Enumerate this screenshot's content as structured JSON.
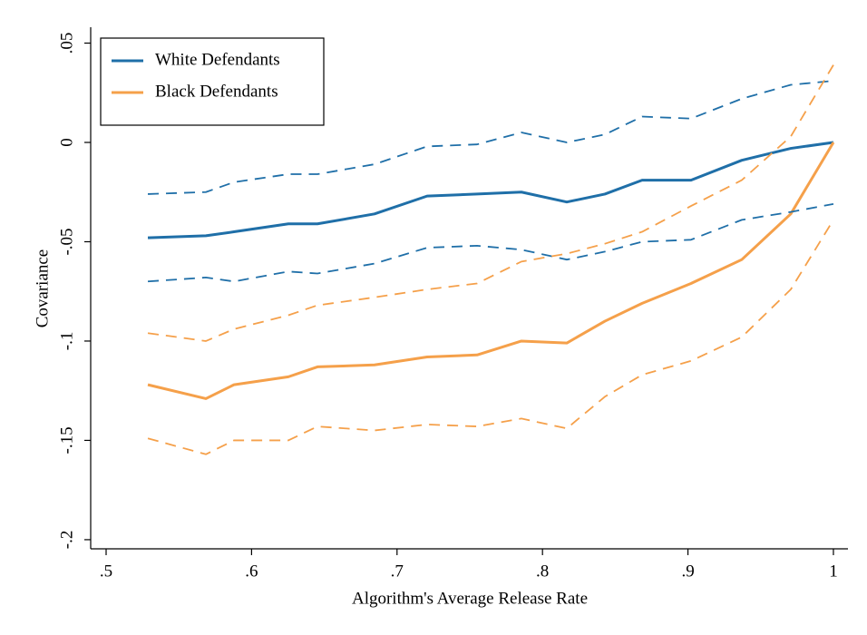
{
  "chart_data": {
    "type": "line",
    "x_label": "Algorithm's Average Release Rate",
    "y_label": "Covariance",
    "x": [
      0.5287,
      0.5686,
      0.5879,
      0.6253,
      0.6453,
      0.6845,
      0.7207,
      0.755,
      0.7855,
      0.8167,
      0.8429,
      0.8685,
      0.9021,
      0.937,
      0.9707,
      1.0
    ],
    "series": [
      {
        "name": "White Defendants",
        "color": "#1f6fa8",
        "dashed": false,
        "values": [
          -0.048,
          -0.047,
          -0.045,
          -0.041,
          -0.041,
          -0.036,
          -0.027,
          -0.026,
          -0.025,
          -0.03,
          -0.026,
          -0.019,
          -0.019,
          -0.009,
          -0.003,
          0
        ]
      },
      {
        "name": "Black Defendants",
        "color": "#f5a04a",
        "dashed": false,
        "values": [
          -0.122,
          -0.129,
          -0.122,
          -0.118,
          -0.113,
          -0.112,
          -0.108,
          -0.107,
          -0.1,
          -0.101,
          -0.09,
          -0.081,
          -0.071,
          -0.059,
          -0.036,
          0
        ]
      },
      {
        "color": "#1f6fa8",
        "dashed": true,
        "values": [
          -0.026,
          -0.025,
          -0.02,
          -0.016,
          -0.016,
          -0.011,
          -0.002,
          -0.001,
          0.005,
          0.0,
          0.004,
          0.013,
          0.012,
          0.022,
          0.029,
          0.031
        ]
      },
      {
        "color": "#1f6fa8",
        "dashed": true,
        "values": [
          -0.07,
          -0.068,
          -0.07,
          -0.065,
          -0.066,
          -0.061,
          -0.053,
          -0.052,
          -0.054,
          -0.059,
          -0.055,
          -0.05,
          -0.049,
          -0.039,
          -0.035,
          -0.031
        ]
      },
      {
        "color": "#f5a04a",
        "dashed": true,
        "values": [
          -0.096,
          -0.1,
          -0.094,
          -0.087,
          -0.082,
          -0.078,
          -0.074,
          -0.071,
          -0.06,
          -0.056,
          -0.051,
          -0.045,
          -0.032,
          -0.019,
          0.003,
          0.039
        ]
      },
      {
        "color": "#f5a04a",
        "dashed": true,
        "values": [
          -0.149,
          -0.157,
          -0.15,
          -0.15,
          -0.143,
          -0.145,
          -0.142,
          -0.143,
          -0.139,
          -0.144,
          -0.128,
          -0.117,
          -0.11,
          -0.098,
          -0.074,
          -0.039
        ]
      }
    ],
    "xlim": [
      0.4894,
      1.01
    ],
    "ylim": [
      -0.2046,
      0.058
    ],
    "xticks": [
      {
        "value": 0.5,
        "label": ".5"
      },
      {
        "value": 0.6,
        "label": ".6"
      },
      {
        "value": 0.7,
        "label": ".7"
      },
      {
        "value": 0.8,
        "label": ".8"
      },
      {
        "value": 0.9,
        "label": ".9"
      },
      1
    ],
    "yticks": [
      {
        "value": -0.2,
        "label": "-.2"
      },
      {
        "value": -0.15,
        "label": "-.15"
      },
      {
        "value": -0.1,
        "label": "-.1"
      },
      {
        "value": -0.05,
        "label": "-.05"
      },
      0,
      {
        "value": 0.05,
        "label": ".05"
      }
    ],
    "grid": false,
    "legend": "top-left"
  }
}
